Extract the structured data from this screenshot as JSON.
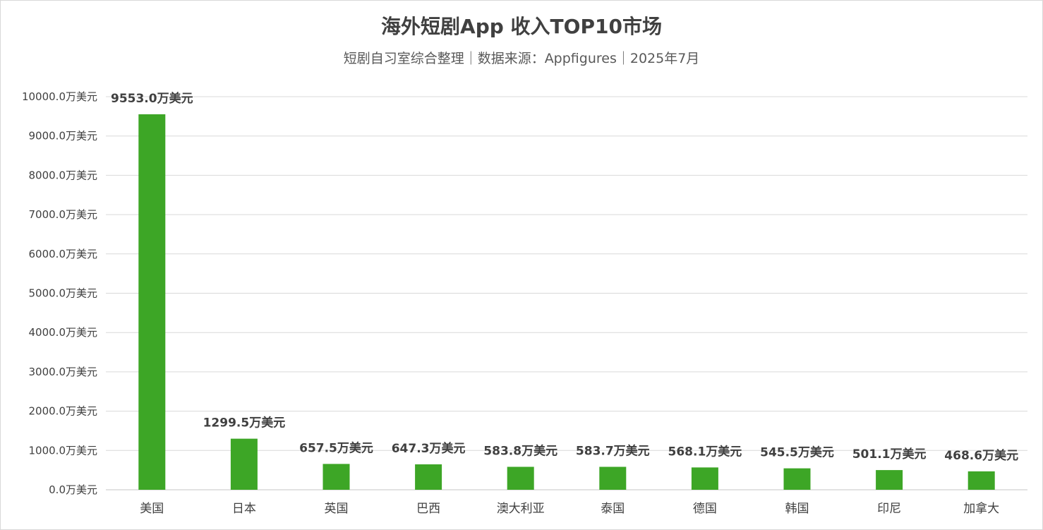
{
  "chart_data": {
    "type": "bar",
    "title": "海外短剧App 收入TOP10市场",
    "subtitle": "短剧自习室综合整理｜数据来源：Appfigures｜2025年7月",
    "categories": [
      "美国",
      "日本",
      "英国",
      "巴西",
      "澳大利亚",
      "泰国",
      "德国",
      "韩国",
      "印尼",
      "加拿大"
    ],
    "values": [
      9553.0,
      1299.5,
      657.5,
      647.3,
      583.8,
      583.7,
      568.1,
      545.5,
      501.1,
      468.6
    ],
    "value_suffix": "万美元",
    "ylim": [
      0,
      10000
    ],
    "y_ticks": [
      "0.0万美元",
      "1000.0万美元",
      "2000.0万美元",
      "3000.0万美元",
      "4000.0万美元",
      "5000.0万美元",
      "6000.0万美元",
      "7000.0万美元",
      "8000.0万美元",
      "9000.0万美元",
      "10000.0万美元"
    ],
    "xlabel": "",
    "ylabel": "",
    "grid": true,
    "legend": "none",
    "bar_color": "#3da626",
    "grid_color": "#d9d9d9"
  }
}
